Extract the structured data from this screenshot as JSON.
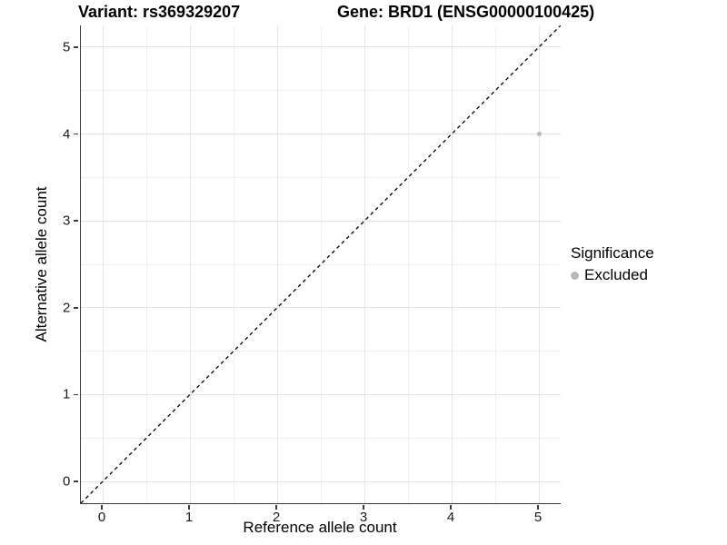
{
  "chart_data": {
    "type": "scatter",
    "title_left": "Variant: rs369329207",
    "title_right": "Gene: BRD1 (ENSG00000100425)",
    "xlabel": "Reference allele count",
    "ylabel": "Alternative allele count",
    "x_ticks": [
      0,
      1,
      2,
      3,
      4,
      5
    ],
    "y_ticks": [
      0,
      1,
      2,
      3,
      4,
      5
    ],
    "xlim": [
      -0.25,
      5.25
    ],
    "ylim": [
      -0.25,
      5.25
    ],
    "grid": {
      "major": true,
      "minor": true,
      "major_color": "#e3e3e3",
      "minor_color": "#efefef"
    },
    "reference_line": {
      "style": "dashed",
      "description": "identity line y = x",
      "from": [
        -0.25,
        -0.25
      ],
      "to": [
        5.25,
        5.25
      ],
      "color": "#000000"
    },
    "series": [
      {
        "name": "Excluded",
        "color": "#b8b8b8",
        "points": [
          {
            "x": 5,
            "y": 4
          }
        ]
      }
    ],
    "legend": {
      "title": "Significance",
      "position": "right",
      "items": [
        {
          "label": "Excluded",
          "color": "#b8b8b8"
        }
      ]
    },
    "colors": {
      "background": "#ffffff",
      "axis_line": "#3a3a3a",
      "text": "#000000"
    }
  }
}
